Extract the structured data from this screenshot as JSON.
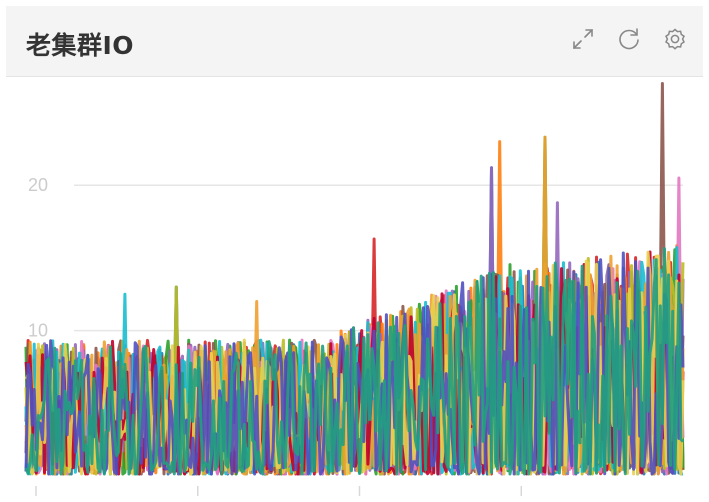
{
  "panel": {
    "title": "老集群IO",
    "tools": [
      {
        "name": "expand-icon"
      },
      {
        "name": "refresh-icon"
      },
      {
        "name": "settings-icon"
      }
    ]
  },
  "chart_data": {
    "type": "line",
    "title": "老集群IO",
    "xlabel": "",
    "ylabel": "",
    "ylim": [
      0,
      26
    ],
    "yticks": [
      "10",
      "20"
    ],
    "grid": true,
    "legend": "none",
    "n_points": 320,
    "series_colors": [
      "#d62728",
      "#1f77b4",
      "#ff7f0e",
      "#2ca02c",
      "#9467bd",
      "#8c564b",
      "#e377c2",
      "#bcbd22",
      "#17becf",
      "#f0a030",
      "#c00030",
      "#e8d050",
      "#5050c0",
      "#20a080"
    ],
    "peaks": [
      {
        "x": 0.53,
        "y": 16.3,
        "color": "#9467bd"
      },
      {
        "x": 0.71,
        "y": 21.2,
        "color": "#9467bd"
      },
      {
        "x": 0.72,
        "y": 23.0,
        "color": "#f0a030"
      },
      {
        "x": 0.79,
        "y": 23.3,
        "color": "#f0a030"
      },
      {
        "x": 0.81,
        "y": 18.8,
        "color": "#f0a030"
      },
      {
        "x": 0.97,
        "y": 27.0,
        "color": "#f0a030"
      },
      {
        "x": 0.995,
        "y": 20.5,
        "color": "#c00030"
      },
      {
        "x": 0.23,
        "y": 13.0,
        "color": "#1f77b4"
      },
      {
        "x": 0.15,
        "y": 12.5,
        "color": "#d62728"
      },
      {
        "x": 0.35,
        "y": 12.0,
        "color": "#1f77b4"
      }
    ]
  }
}
